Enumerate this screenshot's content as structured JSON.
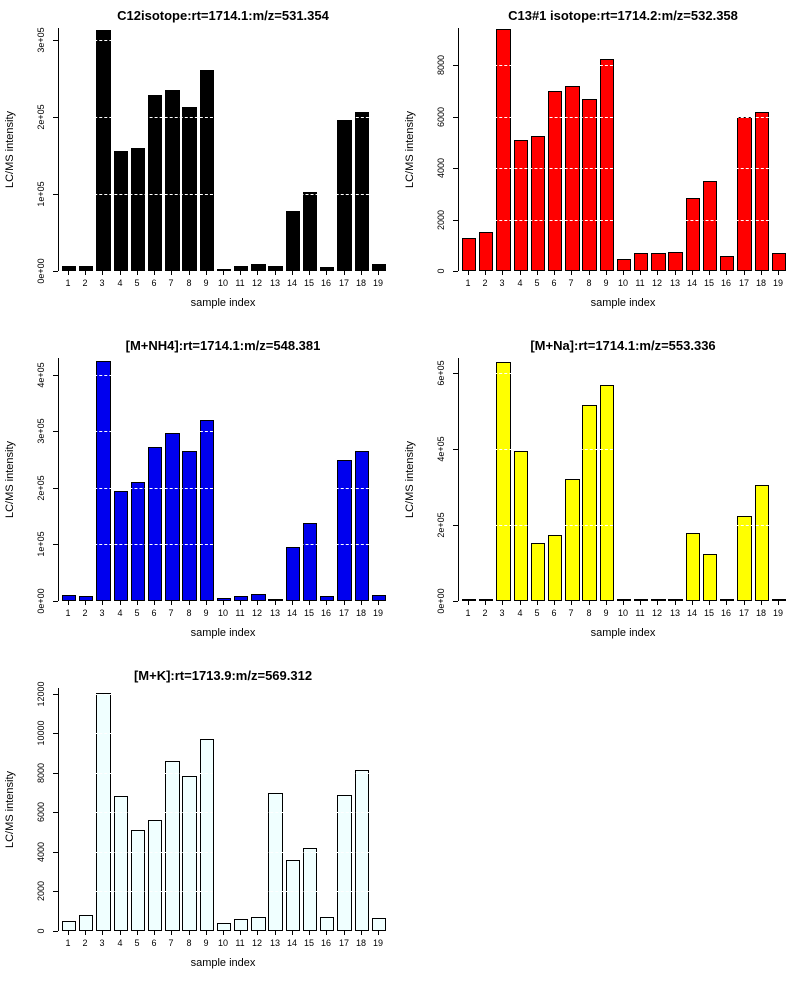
{
  "page": {
    "background": "#ffffff"
  },
  "chart_data": [
    {
      "type": "bar",
      "title": "C12isotope:rt=1714.1:m/z=531.354",
      "xlabel": "sample index",
      "ylabel": "LC/MS intensity",
      "bar_color": "#000000",
      "bar_border_color": "#000000",
      "gridline_color": "#ffffff",
      "grid": true,
      "legend": false,
      "categories": [
        "1",
        "2",
        "3",
        "4",
        "5",
        "6",
        "7",
        "8",
        "9",
        "10",
        "11",
        "12",
        "13",
        "14",
        "15",
        "16",
        "17",
        "18",
        "19"
      ],
      "values": [
        6000,
        6000,
        313000,
        155000,
        160000,
        228000,
        235000,
        212000,
        260000,
        3000,
        6000,
        9000,
        6000,
        78000,
        103000,
        5000,
        196000,
        206000,
        9000
      ],
      "ylim": [
        0,
        315000
      ],
      "yticks": [
        0,
        100000,
        200000,
        300000
      ],
      "ytick_labels": [
        "0e+00",
        "1e+05",
        "2e+05",
        "3e+05"
      ]
    },
    {
      "type": "bar",
      "title": "C13#1 isotope:rt=1714.2:m/z=532.358",
      "xlabel": "sample index",
      "ylabel": "LC/MS intensity",
      "bar_color": "#ff0000",
      "bar_border_color": "#000000",
      "gridline_color": "#ffffff",
      "grid": true,
      "legend": false,
      "categories": [
        "1",
        "2",
        "3",
        "4",
        "5",
        "6",
        "7",
        "8",
        "9",
        "10",
        "11",
        "12",
        "13",
        "14",
        "15",
        "16",
        "17",
        "18",
        "19"
      ],
      "values": [
        1300,
        1500,
        9400,
        5100,
        5250,
        7000,
        7200,
        6700,
        8250,
        450,
        700,
        700,
        750,
        2850,
        3500,
        600,
        6000,
        6200,
        700
      ],
      "ylim": [
        0,
        9450
      ],
      "yticks": [
        0,
        2000,
        4000,
        6000,
        8000
      ],
      "ytick_labels": [
        "0",
        "2000",
        "4000",
        "6000",
        "8000"
      ]
    },
    {
      "type": "bar",
      "title": "[M+NH4]:rt=1714.1:m/z=548.381",
      "xlabel": "sample index",
      "ylabel": "LC/MS intensity",
      "bar_color": "#0000ee",
      "bar_border_color": "#000000",
      "gridline_color": "#ffffff",
      "grid": true,
      "legend": false,
      "categories": [
        "1",
        "2",
        "3",
        "4",
        "5",
        "6",
        "7",
        "8",
        "9",
        "10",
        "11",
        "12",
        "13",
        "14",
        "15",
        "16",
        "17",
        "18",
        "19"
      ],
      "values": [
        10000,
        9000,
        425000,
        195000,
        210000,
        272000,
        298000,
        265000,
        320000,
        6000,
        9000,
        13000,
        3000,
        96000,
        138000,
        8000,
        250000,
        265000,
        10000
      ],
      "ylim": [
        0,
        430000
      ],
      "yticks": [
        0,
        100000,
        200000,
        300000,
        400000
      ],
      "ytick_labels": [
        "0e+00",
        "1e+05",
        "2e+05",
        "3e+05",
        "4e+05"
      ]
    },
    {
      "type": "bar",
      "title": "[M+Na]:rt=1714.1:m/z=553.336",
      "xlabel": "sample index",
      "ylabel": "LC/MS intensity",
      "bar_color": "#ffff00",
      "bar_border_color": "#000000",
      "gridline_color": "#ffffff",
      "grid": true,
      "legend": false,
      "categories": [
        "1",
        "2",
        "3",
        "4",
        "5",
        "6",
        "7",
        "8",
        "9",
        "10",
        "11",
        "12",
        "13",
        "14",
        "15",
        "16",
        "17",
        "18",
        "19"
      ],
      "values": [
        3000,
        5000,
        630000,
        395000,
        153000,
        175000,
        320000,
        515000,
        570000,
        2000,
        4000,
        6000,
        2000,
        180000,
        125000,
        4000,
        225000,
        305000,
        4000
      ],
      "ylim": [
        0,
        640000
      ],
      "yticks": [
        0,
        200000,
        400000,
        600000
      ],
      "ytick_labels": [
        "0e+00",
        "2e+05",
        "4e+05",
        "6e+05"
      ]
    },
    {
      "type": "bar",
      "title": "[M+K]:rt=1713.9:m/z=569.312",
      "xlabel": "sample index",
      "ylabel": "LC/MS intensity",
      "bar_color": "#f0ffff",
      "bar_border_color": "#000000",
      "gridline_color": "#ffffff",
      "grid": true,
      "legend": false,
      "categories": [
        "1",
        "2",
        "3",
        "4",
        "5",
        "6",
        "7",
        "8",
        "9",
        "10",
        "11",
        "12",
        "13",
        "14",
        "15",
        "16",
        "17",
        "18",
        "19"
      ],
      "values": [
        500,
        800,
        12050,
        6850,
        5100,
        5600,
        8600,
        7850,
        9700,
        400,
        600,
        700,
        7000,
        3600,
        4200,
        700,
        6900,
        8150,
        650
      ],
      "ylim": [
        0,
        12300
      ],
      "yticks": [
        0,
        2000,
        4000,
        6000,
        8000,
        10000,
        12000
      ],
      "ytick_labels": [
        "0",
        "2000",
        "4000",
        "6000",
        "8000",
        "10000",
        "12000"
      ]
    }
  ]
}
